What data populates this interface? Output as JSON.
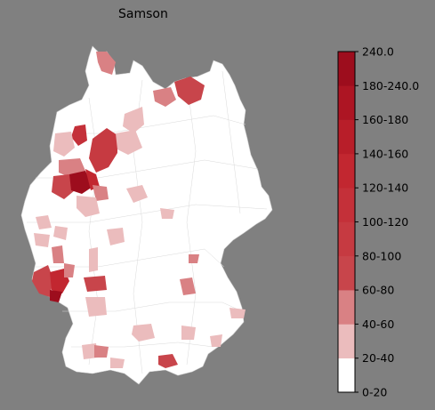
{
  "title": "Samson",
  "legend": {
    "labels": [
      "240.0",
      "180-240.0",
      "160-180",
      "140-160",
      "120-140",
      "100-120",
      "80-100",
      "60-80",
      "40-60",
      "20-40",
      "0-20"
    ],
    "bands": [
      {
        "color": "#ffffff"
      },
      {
        "color": "#ebbcbd"
      },
      {
        "color": "#d98184"
      },
      {
        "color": "#c8454b"
      },
      {
        "color": "#c63a41"
      },
      {
        "color": "#c43039"
      },
      {
        "color": "#c22730"
      },
      {
        "color": "#b81e29"
      },
      {
        "color": "#ad1523"
      },
      {
        "color": "#9d0d1d"
      }
    ]
  },
  "map": {
    "land_color": "#ffffff",
    "border_color": "#c8c8c8",
    "background": "#808080"
  }
}
